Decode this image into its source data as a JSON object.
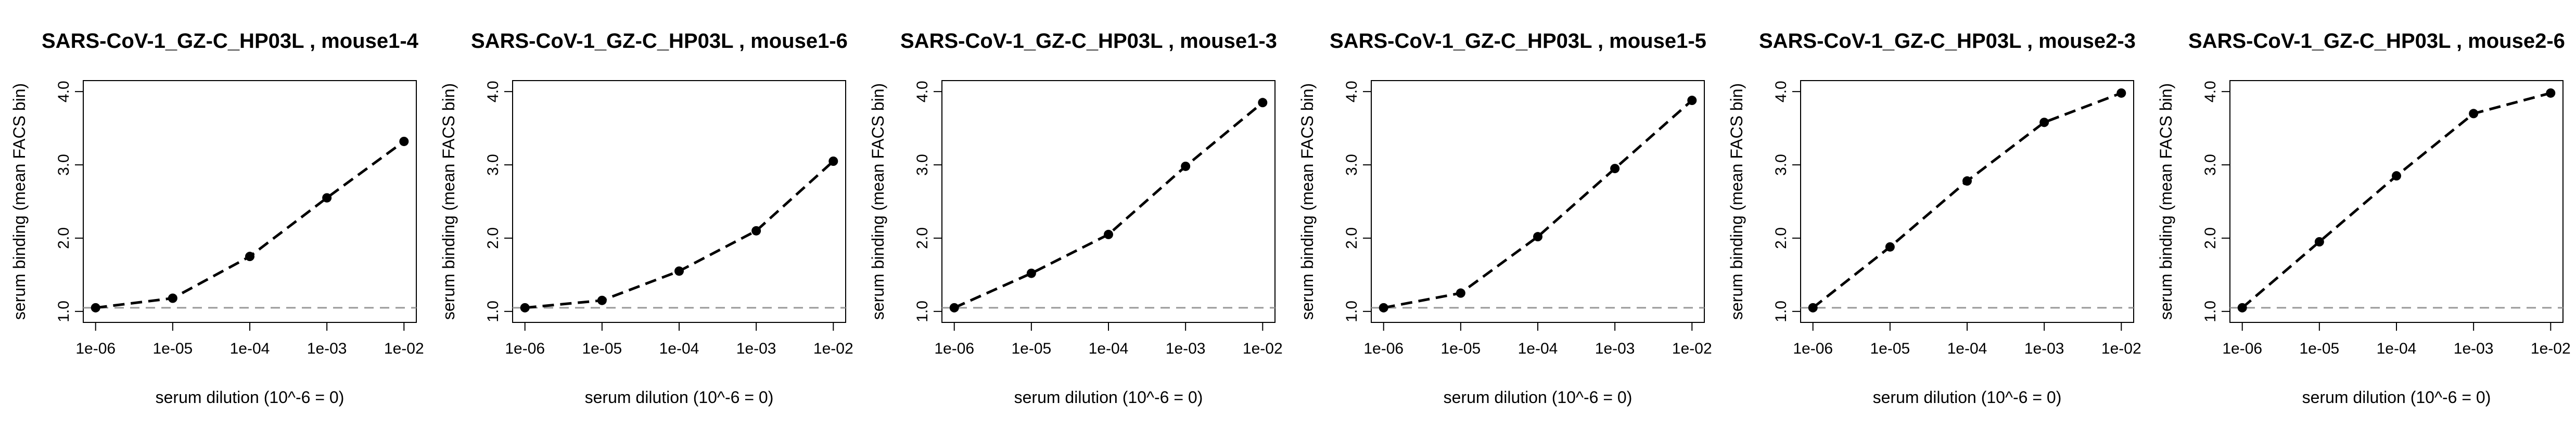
{
  "chart_data": [
    {
      "type": "line",
      "title": "SARS-CoV-1_GZ-C_HP03L , mouse1-4",
      "xlabel": "serum dilution (10^-6 = 0)",
      "ylabel": "serum binding (mean FACS bin)",
      "x_scale": "log10",
      "x": [
        1e-06,
        1e-05,
        0.0001,
        0.001,
        0.01
      ],
      "x_tick_labels": [
        "1e-06",
        "1e-05",
        "1e-04",
        "1e-03",
        "1e-02"
      ],
      "y_ticks": [
        1.0,
        2.0,
        3.0,
        4.0
      ],
      "y_tick_labels": [
        "1.0",
        "2.0",
        "3.0",
        "4.0"
      ],
      "ylim": [
        0.85,
        4.15
      ],
      "baseline": 1.05,
      "baseline_color": "#999999",
      "series": [
        {
          "values": [
            1.05,
            1.18,
            1.75,
            2.55,
            3.32
          ],
          "color": "#000000"
        }
      ]
    },
    {
      "type": "line",
      "title": "SARS-CoV-1_GZ-C_HP03L , mouse1-6",
      "xlabel": "serum dilution (10^-6 = 0)",
      "ylabel": "serum binding (mean FACS bin)",
      "x_scale": "log10",
      "x": [
        1e-06,
        1e-05,
        0.0001,
        0.001,
        0.01
      ],
      "x_tick_labels": [
        "1e-06",
        "1e-05",
        "1e-04",
        "1e-03",
        "1e-02"
      ],
      "y_ticks": [
        1.0,
        2.0,
        3.0,
        4.0
      ],
      "y_tick_labels": [
        "1.0",
        "2.0",
        "3.0",
        "4.0"
      ],
      "ylim": [
        0.85,
        4.15
      ],
      "baseline": 1.05,
      "baseline_color": "#999999",
      "series": [
        {
          "values": [
            1.05,
            1.15,
            1.55,
            2.1,
            3.05
          ],
          "color": "#000000"
        }
      ]
    },
    {
      "type": "line",
      "title": "SARS-CoV-1_GZ-C_HP03L , mouse1-3",
      "xlabel": "serum dilution (10^-6 = 0)",
      "ylabel": "serum binding (mean FACS bin)",
      "x_scale": "log10",
      "x": [
        1e-06,
        1e-05,
        0.0001,
        0.001,
        0.01
      ],
      "x_tick_labels": [
        "1e-06",
        "1e-05",
        "1e-04",
        "1e-03",
        "1e-02"
      ],
      "y_ticks": [
        1.0,
        2.0,
        3.0,
        4.0
      ],
      "y_tick_labels": [
        "1.0",
        "2.0",
        "3.0",
        "4.0"
      ],
      "ylim": [
        0.85,
        4.15
      ],
      "baseline": 1.05,
      "baseline_color": "#999999",
      "series": [
        {
          "values": [
            1.05,
            1.52,
            2.05,
            2.98,
            3.85
          ],
          "color": "#000000"
        }
      ]
    },
    {
      "type": "line",
      "title": "SARS-CoV-1_GZ-C_HP03L , mouse1-5",
      "xlabel": "serum dilution (10^-6 = 0)",
      "ylabel": "serum binding (mean FACS bin)",
      "x_scale": "log10",
      "x": [
        1e-06,
        1e-05,
        0.0001,
        0.001,
        0.01
      ],
      "x_tick_labels": [
        "1e-06",
        "1e-05",
        "1e-04",
        "1e-03",
        "1e-02"
      ],
      "y_ticks": [
        1.0,
        2.0,
        3.0,
        4.0
      ],
      "y_tick_labels": [
        "1.0",
        "2.0",
        "3.0",
        "4.0"
      ],
      "ylim": [
        0.85,
        4.15
      ],
      "baseline": 1.05,
      "baseline_color": "#999999",
      "series": [
        {
          "values": [
            1.05,
            1.25,
            2.02,
            2.95,
            3.88
          ],
          "color": "#000000"
        }
      ]
    },
    {
      "type": "line",
      "title": "SARS-CoV-1_GZ-C_HP03L , mouse2-3",
      "xlabel": "serum dilution (10^-6 = 0)",
      "ylabel": "serum binding (mean FACS bin)",
      "x_scale": "log10",
      "x": [
        1e-06,
        1e-05,
        0.0001,
        0.001,
        0.01
      ],
      "x_tick_labels": [
        "1e-06",
        "1e-05",
        "1e-04",
        "1e-03",
        "1e-02"
      ],
      "y_ticks": [
        1.0,
        2.0,
        3.0,
        4.0
      ],
      "y_tick_labels": [
        "1.0",
        "2.0",
        "3.0",
        "4.0"
      ],
      "ylim": [
        0.85,
        4.15
      ],
      "baseline": 1.05,
      "baseline_color": "#999999",
      "series": [
        {
          "values": [
            1.05,
            1.88,
            2.78,
            3.58,
            3.98
          ],
          "color": "#000000"
        }
      ]
    },
    {
      "type": "line",
      "title": "SARS-CoV-1_GZ-C_HP03L , mouse2-6",
      "xlabel": "serum dilution (10^-6 = 0)",
      "ylabel": "serum binding (mean FACS bin)",
      "x_scale": "log10",
      "x": [
        1e-06,
        1e-05,
        0.0001,
        0.001,
        0.01
      ],
      "x_tick_labels": [
        "1e-06",
        "1e-05",
        "1e-04",
        "1e-03",
        "1e-02"
      ],
      "y_ticks": [
        1.0,
        2.0,
        3.0,
        4.0
      ],
      "y_tick_labels": [
        "1.0",
        "2.0",
        "3.0",
        "4.0"
      ],
      "ylim": [
        0.85,
        4.15
      ],
      "baseline": 1.05,
      "baseline_color": "#999999",
      "series": [
        {
          "values": [
            1.05,
            1.95,
            2.85,
            3.7,
            3.98
          ],
          "color": "#000000"
        }
      ]
    }
  ]
}
